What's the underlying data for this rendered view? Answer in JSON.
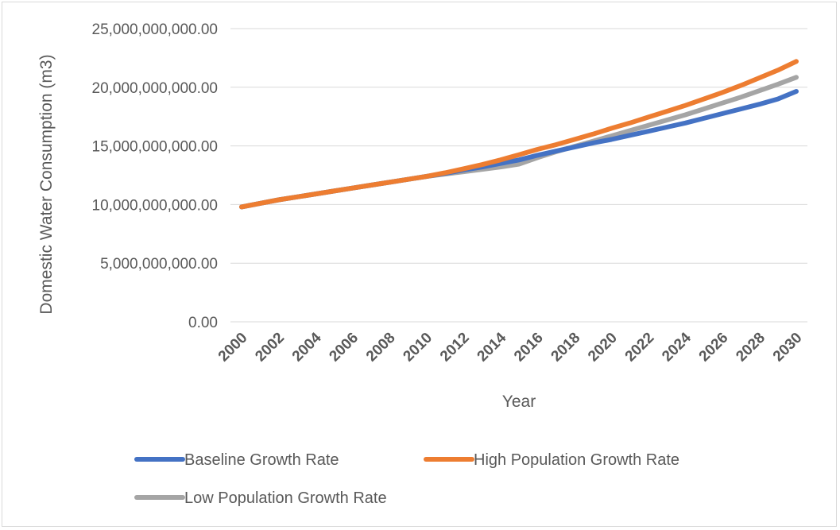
{
  "chart_data": {
    "type": "line",
    "title": "",
    "xlabel": "Year",
    "ylabel": "Domestic Water Consumption (m3)",
    "ylim": [
      0,
      25000000000
    ],
    "y_ticks": [
      0,
      5000000000,
      10000000000,
      15000000000,
      20000000000,
      25000000000
    ],
    "y_tick_labels": [
      "0.00",
      "5,000,000,000.00",
      "10,000,000,000.00",
      "15,000,000,000.00",
      "20,000,000,000.00",
      "25,000,000,000.00"
    ],
    "x": [
      2000,
      2001,
      2002,
      2003,
      2004,
      2005,
      2006,
      2007,
      2008,
      2009,
      2010,
      2011,
      2012,
      2013,
      2014,
      2015,
      2016,
      2017,
      2018,
      2019,
      2020,
      2021,
      2022,
      2023,
      2024,
      2025,
      2026,
      2027,
      2028,
      2029,
      2030
    ],
    "x_tick_labels": [
      "2000",
      "2002",
      "2004",
      "2006",
      "2008",
      "2010",
      "2012",
      "2014",
      "2016",
      "2018",
      "2020",
      "2022",
      "2024",
      "2026",
      "2028",
      "2030"
    ],
    "grid": true,
    "legend_position": "bottom",
    "series": [
      {
        "name": "Baseline Growth Rate",
        "color": "#4472c4",
        "values": [
          9800000000,
          10100000000,
          10400000000,
          10650000000,
          10900000000,
          11150000000,
          11400000000,
          11650000000,
          11900000000,
          12150000000,
          12400000000,
          12650000000,
          12950000000,
          13200000000,
          13500000000,
          13800000000,
          14200000000,
          14550000000,
          14900000000,
          15250000000,
          15550000000,
          15900000000,
          16250000000,
          16600000000,
          16950000000,
          17350000000,
          17750000000,
          18150000000,
          18550000000,
          19000000000,
          19650000000
        ]
      },
      {
        "name": "High Population Growth Rate",
        "color": "#ed7d31",
        "values": [
          9800000000,
          10100000000,
          10400000000,
          10650000000,
          10900000000,
          11150000000,
          11400000000,
          11650000000,
          11900000000,
          12150000000,
          12400000000,
          12700000000,
          13050000000,
          13400000000,
          13800000000,
          14250000000,
          14700000000,
          15100000000,
          15550000000,
          16000000000,
          16500000000,
          16950000000,
          17450000000,
          17950000000,
          18450000000,
          19000000000,
          19550000000,
          20150000000,
          20800000000,
          21450000000,
          22200000000
        ]
      },
      {
        "name": "Low Population Growth Rate",
        "color": "#a5a5a5",
        "values": [
          9800000000,
          10100000000,
          10400000000,
          10650000000,
          10900000000,
          11150000000,
          11400000000,
          11650000000,
          11900000000,
          12150000000,
          12400000000,
          12600000000,
          12800000000,
          13000000000,
          13200000000,
          13450000000,
          14000000000,
          14500000000,
          14950000000,
          15400000000,
          15850000000,
          16300000000,
          16750000000,
          17200000000,
          17650000000,
          18150000000,
          18650000000,
          19150000000,
          19700000000,
          20250000000,
          20850000000
        ]
      }
    ]
  }
}
